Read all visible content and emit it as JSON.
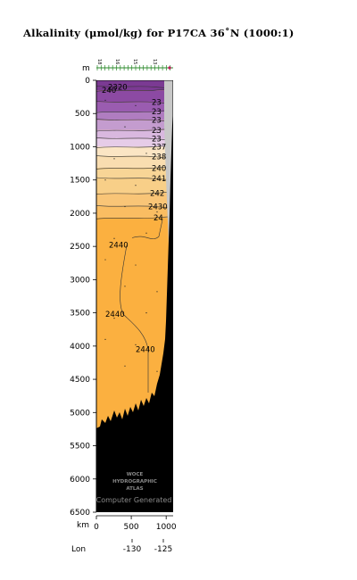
{
  "title": "Alkalinity (μmol/kg) for P17CA 36˚N (1000:1)",
  "chart_data": {
    "type": "heatmap",
    "title": "Alkalinity (μmol/kg) for P17CA 36˚N (1000:1)",
    "y_axis_unit": "m",
    "ylim": [
      0,
      6500
    ],
    "y_ticks": [
      "0",
      "500",
      "1000",
      "1500",
      "2000",
      "2500",
      "3000",
      "3500",
      "4000",
      "4500",
      "5000",
      "5500",
      "6000",
      "6500"
    ],
    "x_axis_unit": "km",
    "xlim": [
      0,
      1100
    ],
    "x_ticks": [
      "0",
      "500",
      "1000"
    ],
    "lon_axis_label": "Lon",
    "lon_ticks": [
      "-130",
      "-125"
    ],
    "station_labels": [
      "18",
      "16",
      "15",
      "13"
    ],
    "contours": [
      {
        "level": "2320",
        "depth_m": 100
      },
      {
        "level": "240",
        "depth_m": 150
      },
      {
        "level": "23",
        "depth_m": 330
      },
      {
        "level": "23",
        "depth_m": 470
      },
      {
        "level": "23",
        "depth_m": 600
      },
      {
        "level": "23",
        "depth_m": 750
      },
      {
        "level": "23",
        "depth_m": 880
      },
      {
        "level": "237",
        "depth_m": 1000
      },
      {
        "level": "238",
        "depth_m": 1150
      },
      {
        "level": "240",
        "depth_m": 1320
      },
      {
        "level": "241",
        "depth_m": 1480
      },
      {
        "level": "242",
        "depth_m": 1700
      },
      {
        "level": "2430",
        "depth_m": 1900
      },
      {
        "level": "24",
        "depth_m": 2070
      },
      {
        "level": "2440",
        "depth_m": 2480
      },
      {
        "level": "2440",
        "depth_m": 3520
      },
      {
        "level": "2440",
        "depth_m": 4050
      }
    ],
    "colors": {
      "surface": "#7b3a93",
      "upper": "#a266b5",
      "mid_light": "#e6cce8",
      "pale": "#fbe5c4",
      "light_orange": "#f8d596",
      "orange": "#f9c577",
      "deep": "#fbb040",
      "bathymetry": "#000000",
      "outside_section": "#c8c8c8"
    },
    "grid": false
  },
  "watermark": {
    "line1": "WOCE",
    "line2": "HYDROGRAPHIC",
    "line3": "ATLAS",
    "line4": "Computer Generated"
  }
}
